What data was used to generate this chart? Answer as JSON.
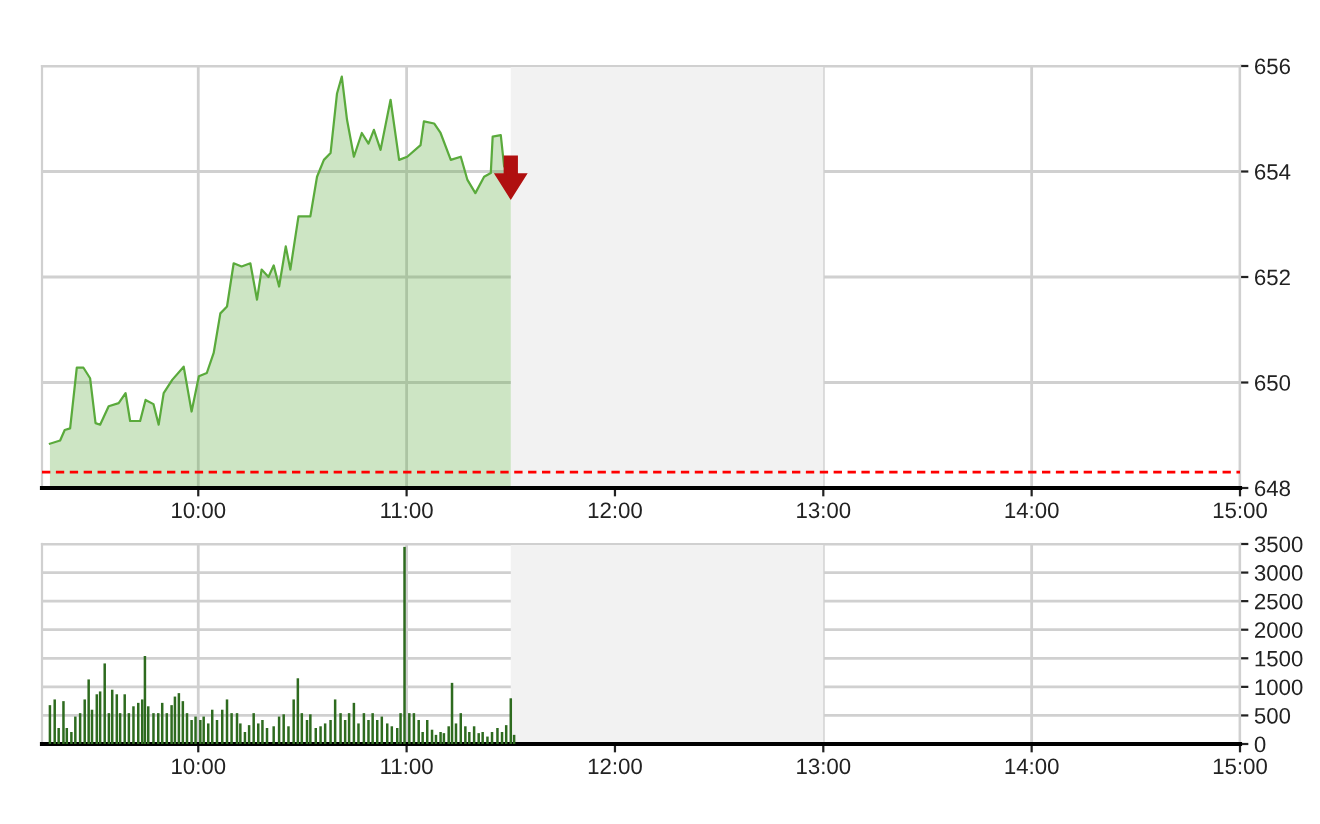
{
  "chart_data": [
    {
      "type": "area",
      "color": "#5aaa3c",
      "xlim": [
        9.25,
        15
      ],
      "ylim": [
        648,
        656
      ],
      "yticks": [
        648,
        650,
        652,
        654,
        656
      ],
      "xticks": [
        {
          "value": 10,
          "label": "10:00"
        },
        {
          "value": 11,
          "label": "11:00"
        },
        {
          "value": 12,
          "label": "12:00"
        },
        {
          "value": 13,
          "label": "13:00"
        },
        {
          "value": 14,
          "label": "14:00"
        },
        {
          "value": 15,
          "label": "15:00"
        }
      ],
      "grid": true,
      "ref_lines": [
        {
          "axis": "y",
          "value": 648.3,
          "color": "#ff0000",
          "line_style": "dashed"
        }
      ],
      "bands": [
        {
          "axis": "x",
          "from": 11.5,
          "to": 13,
          "color": "#f2f2f2"
        }
      ],
      "x": [
        9.288,
        9.337,
        9.359,
        9.385,
        9.417,
        9.449,
        9.481,
        9.507,
        9.529,
        9.57,
        9.618,
        9.651,
        9.673,
        9.721,
        9.747,
        9.785,
        9.81,
        9.834,
        9.875,
        9.93,
        9.968,
        10.003,
        10.041,
        10.074,
        10.106,
        10.138,
        10.17,
        10.208,
        10.25,
        10.282,
        10.304,
        10.337,
        10.362,
        10.388,
        10.42,
        10.442,
        10.481,
        10.538,
        10.57,
        10.603,
        10.635,
        10.666,
        10.689,
        10.714,
        10.747,
        10.785,
        10.817,
        10.843,
        10.875,
        10.923,
        10.964,
        11.003,
        11.067,
        11.083,
        11.132,
        11.163,
        11.212,
        11.26,
        11.292,
        11.33,
        11.372,
        11.404,
        11.413,
        11.452,
        11.468,
        11.5
      ],
      "values": [
        648.84,
        648.9,
        649.1,
        649.13,
        650.28,
        650.28,
        650.08,
        649.23,
        649.2,
        649.55,
        649.61,
        649.8,
        649.27,
        649.27,
        649.67,
        649.59,
        649.2,
        649.8,
        650.05,
        650.3,
        649.45,
        650.12,
        650.18,
        650.56,
        651.31,
        651.44,
        652.26,
        652.2,
        652.26,
        651.57,
        652.14,
        652.0,
        652.22,
        651.82,
        652.58,
        652.14,
        653.15,
        653.15,
        653.9,
        654.22,
        654.35,
        655.48,
        655.8,
        654.98,
        654.28,
        654.73,
        654.53,
        654.79,
        654.41,
        655.36,
        654.22,
        654.28,
        654.5,
        654.95,
        654.91,
        654.73,
        654.22,
        654.28,
        653.84,
        653.59,
        653.9,
        653.97,
        654.66,
        654.69,
        654.1,
        653.94
      ]
    },
    {
      "type": "bar",
      "color": "#2e6b1f",
      "xlim": [
        9.25,
        15
      ],
      "ylim": [
        0,
        3500
      ],
      "yticks": [
        0,
        500,
        1000,
        1500,
        2000,
        2500,
        3000,
        3500
      ],
      "xticks": [
        {
          "value": 10,
          "label": "10:00"
        },
        {
          "value": 11,
          "label": "11:00"
        },
        {
          "value": 12,
          "label": "12:00"
        },
        {
          "value": 13,
          "label": "13:00"
        },
        {
          "value": 14,
          "label": "14:00"
        },
        {
          "value": 15,
          "label": "15:00"
        }
      ],
      "grid": true,
      "bands": [
        {
          "axis": "x",
          "from": 11.5,
          "to": 13,
          "color": "#f2f2f2"
        }
      ],
      "x": [
        9.288,
        9.311,
        9.33,
        9.353,
        9.369,
        9.391,
        9.41,
        9.433,
        9.455,
        9.474,
        9.49,
        9.513,
        9.529,
        9.551,
        9.571,
        9.587,
        9.609,
        9.625,
        9.647,
        9.667,
        9.689,
        9.712,
        9.731,
        9.744,
        9.76,
        9.785,
        9.808,
        9.827,
        9.849,
        9.872,
        9.888,
        9.907,
        9.926,
        9.946,
        9.968,
        9.987,
        10.01,
        10.026,
        10.048,
        10.067,
        10.09,
        10.115,
        10.138,
        10.16,
        10.186,
        10.202,
        10.224,
        10.244,
        10.266,
        10.288,
        10.308,
        10.33,
        10.362,
        10.388,
        10.41,
        10.433,
        10.458,
        10.478,
        10.497,
        10.522,
        10.538,
        10.564,
        10.587,
        10.609,
        10.635,
        10.657,
        10.683,
        10.705,
        10.724,
        10.747,
        10.769,
        10.795,
        10.817,
        10.837,
        10.859,
        10.881,
        10.907,
        10.929,
        10.955,
        10.971,
        10.99,
        11.013,
        11.035,
        11.058,
        11.077,
        11.099,
        11.122,
        11.141,
        11.163,
        11.179,
        11.202,
        11.218,
        11.237,
        11.26,
        11.282,
        11.301,
        11.324,
        11.346,
        11.365,
        11.388,
        11.41,
        11.436,
        11.458,
        11.478,
        11.5,
        11.516
      ],
      "values": [
        680,
        780,
        280,
        750,
        280,
        210,
        480,
        540,
        780,
        1130,
        600,
        870,
        920,
        1410,
        540,
        950,
        870,
        540,
        870,
        540,
        660,
        720,
        780,
        1540,
        660,
        540,
        540,
        720,
        540,
        680,
        830,
        890,
        750,
        540,
        420,
        480,
        420,
        480,
        360,
        600,
        420,
        600,
        780,
        540,
        540,
        360,
        210,
        330,
        540,
        360,
        420,
        280,
        310,
        480,
        520,
        310,
        780,
        1150,
        540,
        420,
        520,
        280,
        310,
        360,
        420,
        780,
        540,
        420,
        540,
        720,
        360,
        540,
        420,
        540,
        420,
        480,
        360,
        310,
        280,
        540,
        3450,
        540,
        540,
        420,
        210,
        420,
        250,
        160,
        210,
        190,
        310,
        1070,
        360,
        540,
        310,
        210,
        310,
        190,
        210,
        130,
        210,
        280,
        210,
        330,
        800,
        160
      ]
    }
  ]
}
